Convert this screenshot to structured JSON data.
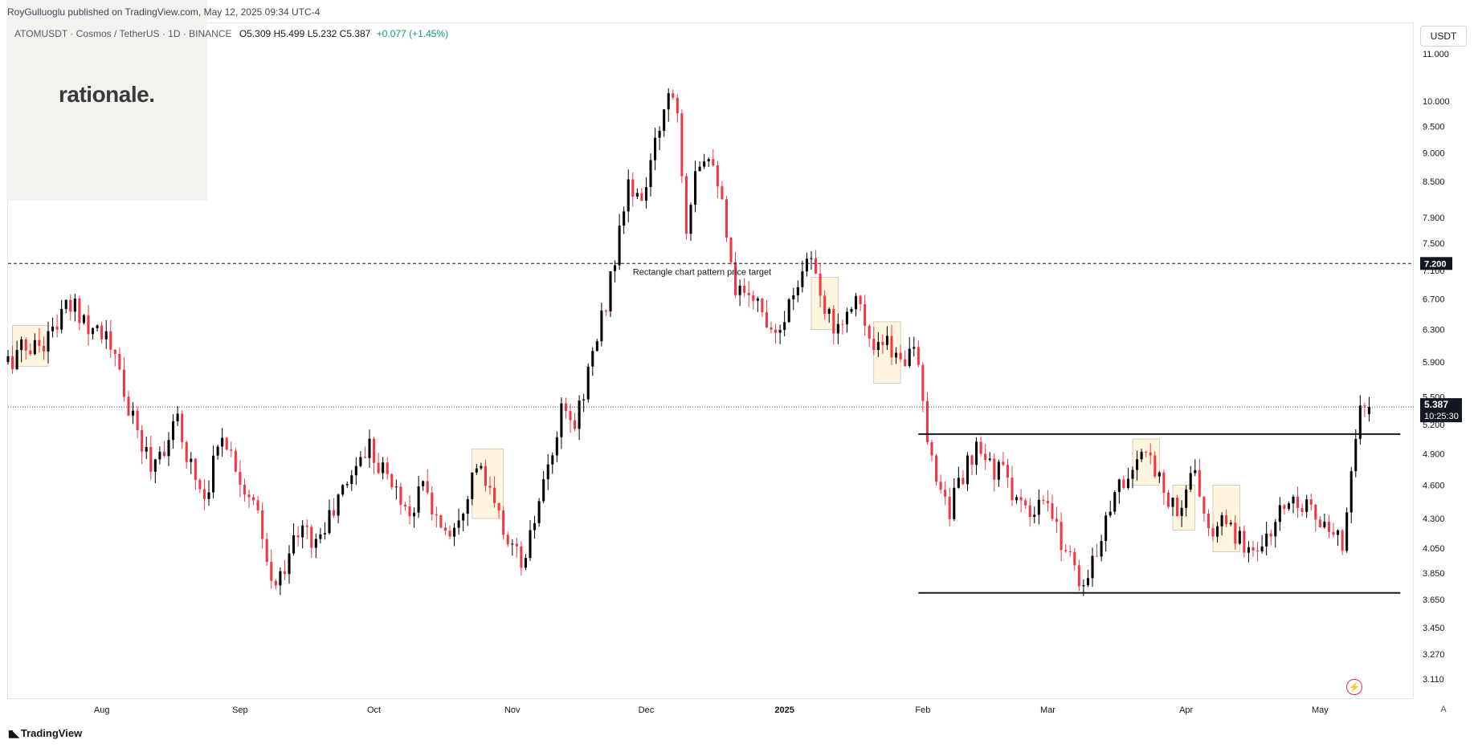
{
  "header": {
    "publisher": "RoyGulluoglu published on TradingView.com, May 12, 2025 09:34 UTC-4",
    "watermark": "rationale.",
    "unit_button": "USDT",
    "brand": "TradingView",
    "auto_button": "A"
  },
  "legend": {
    "symbol": "ATOMUSDT · Cosmos / TetherUS · 1D · BINANCE",
    "open": "O5.309",
    "high": "H5.499",
    "low": "L5.232",
    "close": "C5.387",
    "change": "+0.077 (+1.45%)"
  },
  "colors": {
    "up": "#000000",
    "down": "#f23645",
    "highlight": "#fdf5dd",
    "last_label_bg": "#131722",
    "change_text": "#089981",
    "bolt": "#d12c61"
  },
  "chart_data": {
    "type": "candlestick",
    "symbol": "ATOMUSDT",
    "interval": "1D",
    "scale": "log",
    "ylim": [
      3.0,
      11.7
    ],
    "y_ticks": [
      3.11,
      3.27,
      3.45,
      3.65,
      3.85,
      4.05,
      4.3,
      4.6,
      4.9,
      5.2,
      5.5,
      5.9,
      6.3,
      6.7,
      7.1,
      7.5,
      7.9,
      8.5,
      9.0,
      9.5,
      10.0,
      11.0
    ],
    "y_tick_labels": [
      "3.110",
      "3.270",
      "3.450",
      "3.650",
      "3.850",
      "4.050",
      "4.300",
      "4.600",
      "4.900",
      "5.200",
      "5.500",
      "5.900",
      "6.300",
      "6.700",
      "7.100",
      "7.500",
      "7.900",
      "8.500",
      "9.000",
      "9.500",
      "10.000",
      "11.000"
    ],
    "x_range": [
      "2024-07-11",
      "2025-05-22"
    ],
    "x_ticks": [
      {
        "date": "2024-08-01",
        "label": "Aug",
        "bold": false
      },
      {
        "date": "2024-09-01",
        "label": "Sep",
        "bold": false
      },
      {
        "date": "2024-10-01",
        "label": "Oct",
        "bold": false
      },
      {
        "date": "2024-11-01",
        "label": "Nov",
        "bold": false
      },
      {
        "date": "2024-12-01",
        "label": "Dec",
        "bold": false
      },
      {
        "date": "2025-01-01",
        "label": "2025",
        "bold": true
      },
      {
        "date": "2025-02-01",
        "label": "Feb",
        "bold": false
      },
      {
        "date": "2025-03-01",
        "label": "Mar",
        "bold": false
      },
      {
        "date": "2025-04-01",
        "label": "Apr",
        "bold": false
      },
      {
        "date": "2025-05-01",
        "label": "May",
        "bold": false
      }
    ],
    "close_path": [
      [
        "2024-07-11",
        5.9
      ],
      [
        "2024-07-14",
        6.05
      ],
      [
        "2024-07-17",
        6.1
      ],
      [
        "2024-07-20",
        6.2
      ],
      [
        "2024-07-23",
        6.5
      ],
      [
        "2024-07-26",
        6.6
      ],
      [
        "2024-07-29",
        6.4
      ],
      [
        "2024-08-01",
        6.3
      ],
      [
        "2024-08-03",
        6.05
      ],
      [
        "2024-08-05",
        5.75
      ],
      [
        "2024-08-07",
        5.35
      ],
      [
        "2024-08-09",
        5.1
      ],
      [
        "2024-08-12",
        4.8
      ],
      [
        "2024-08-15",
        5.0
      ],
      [
        "2024-08-18",
        5.2
      ],
      [
        "2024-08-21",
        4.8
      ],
      [
        "2024-08-24",
        4.5
      ],
      [
        "2024-08-26",
        4.8
      ],
      [
        "2024-08-28",
        5.15
      ],
      [
        "2024-08-30",
        4.9
      ],
      [
        "2024-09-02",
        4.6
      ],
      [
        "2024-09-05",
        4.3
      ],
      [
        "2024-09-07",
        3.9
      ],
      [
        "2024-09-09",
        3.72
      ],
      [
        "2024-09-12",
        4.05
      ],
      [
        "2024-09-15",
        4.2
      ],
      [
        "2024-09-18",
        4.1
      ],
      [
        "2024-09-21",
        4.3
      ],
      [
        "2024-09-24",
        4.55
      ],
      [
        "2024-09-27",
        4.8
      ],
      [
        "2024-09-30",
        5.0
      ],
      [
        "2024-10-03",
        4.75
      ],
      [
        "2024-10-06",
        4.55
      ],
      [
        "2024-10-09",
        4.35
      ],
      [
        "2024-10-12",
        4.6
      ],
      [
        "2024-10-15",
        4.3
      ],
      [
        "2024-10-18",
        4.2
      ],
      [
        "2024-10-21",
        4.45
      ],
      [
        "2024-10-24",
        4.8
      ],
      [
        "2024-10-27",
        4.5
      ],
      [
        "2024-10-30",
        4.2
      ],
      [
        "2024-11-02",
        4.0
      ],
      [
        "2024-11-04",
        3.93
      ],
      [
        "2024-11-06",
        4.3
      ],
      [
        "2024-11-09",
        4.7
      ],
      [
        "2024-11-12",
        5.3
      ],
      [
        "2024-11-15",
        5.2
      ],
      [
        "2024-11-18",
        5.8
      ],
      [
        "2024-11-21",
        6.4
      ],
      [
        "2024-11-23",
        7.0
      ],
      [
        "2024-11-25",
        7.6
      ],
      [
        "2024-11-27",
        8.5
      ],
      [
        "2024-11-29",
        8.1
      ],
      [
        "2024-12-02",
        8.7
      ],
      [
        "2024-12-04",
        9.5
      ],
      [
        "2024-12-06",
        10.3
      ],
      [
        "2024-12-08",
        9.9
      ],
      [
        "2024-12-10",
        7.8
      ],
      [
        "2024-12-12",
        8.8
      ],
      [
        "2024-12-15",
        9.1
      ],
      [
        "2024-12-17",
        8.6
      ],
      [
        "2024-12-19",
        7.5
      ],
      [
        "2024-12-21",
        6.7
      ],
      [
        "2024-12-24",
        6.9
      ],
      [
        "2024-12-27",
        6.5
      ],
      [
        "2024-12-30",
        6.35
      ],
      [
        "2025-01-02",
        6.6
      ],
      [
        "2025-01-05",
        7.2
      ],
      [
        "2025-01-07",
        7.3
      ],
      [
        "2025-01-09",
        6.6
      ],
      [
        "2025-01-12",
        6.4
      ],
      [
        "2025-01-15",
        6.5
      ],
      [
        "2025-01-17",
        6.9
      ],
      [
        "2025-01-19",
        6.3
      ],
      [
        "2025-01-21",
        6.0
      ],
      [
        "2025-01-24",
        6.1
      ],
      [
        "2025-01-27",
        5.9
      ],
      [
        "2025-01-30",
        6.2
      ],
      [
        "2025-01-31",
        5.75
      ],
      [
        "2025-02-02",
        4.95
      ],
      [
        "2025-02-04",
        4.7
      ],
      [
        "2025-02-07",
        4.4
      ],
      [
        "2025-02-10",
        4.7
      ],
      [
        "2025-02-13",
        4.9
      ],
      [
        "2025-02-16",
        4.8
      ],
      [
        "2025-02-19",
        4.7
      ],
      [
        "2025-02-22",
        4.5
      ],
      [
        "2025-02-25",
        4.25
      ],
      [
        "2025-02-28",
        4.45
      ],
      [
        "2025-03-03",
        4.2
      ],
      [
        "2025-03-06",
        4.0
      ],
      [
        "2025-03-09",
        3.75
      ],
      [
        "2025-03-11",
        3.9
      ],
      [
        "2025-03-14",
        4.35
      ],
      [
        "2025-03-17",
        4.6
      ],
      [
        "2025-03-20",
        4.75
      ],
      [
        "2025-03-23",
        4.85
      ],
      [
        "2025-03-26",
        4.75
      ],
      [
        "2025-03-28",
        4.45
      ],
      [
        "2025-03-31",
        4.35
      ],
      [
        "2025-04-02",
        4.8
      ],
      [
        "2025-04-04",
        4.5
      ],
      [
        "2025-04-07",
        4.1
      ],
      [
        "2025-04-10",
        4.3
      ],
      [
        "2025-04-13",
        4.1
      ],
      [
        "2025-04-16",
        4.05
      ],
      [
        "2025-04-19",
        4.1
      ],
      [
        "2025-04-22",
        4.35
      ],
      [
        "2025-04-25",
        4.5
      ],
      [
        "2025-04-28",
        4.45
      ],
      [
        "2025-05-01",
        4.25
      ],
      [
        "2025-05-04",
        4.1
      ],
      [
        "2025-05-06",
        4.1
      ],
      [
        "2025-05-08",
        4.8
      ],
      [
        "2025-05-10",
        5.35
      ],
      [
        "2025-05-12",
        5.387
      ]
    ],
    "last_bar": {
      "date": "2025-05-12",
      "open": 5.309,
      "high": 5.499,
      "low": 5.232,
      "close": 5.387
    },
    "last_price_label": "5.387",
    "countdown_label": "10:25:30",
    "horizontal_lines": [
      {
        "name": "target",
        "price": 7.2,
        "style": "dashed",
        "label": "7.200",
        "annotation": "Rectangle chart pattern price target"
      },
      {
        "name": "resistance",
        "price": 5.1,
        "style": "solid",
        "from": "2025-01-31",
        "to": "2025-05-19"
      },
      {
        "name": "support",
        "price": 3.7,
        "style": "solid",
        "from": "2025-01-31",
        "to": "2025-05-19"
      }
    ],
    "highlight_boxes": [
      {
        "from": "2024-07-12",
        "to": "2024-07-20",
        "low": 5.85,
        "high": 6.35
      },
      {
        "from": "2024-10-23",
        "to": "2024-10-30",
        "low": 4.3,
        "high": 4.95
      },
      {
        "from": "2025-01-07",
        "to": "2025-01-13",
        "low": 6.3,
        "high": 7.0
      },
      {
        "from": "2025-01-21",
        "to": "2025-01-27",
        "low": 5.65,
        "high": 6.4
      },
      {
        "from": "2025-03-20",
        "to": "2025-03-26",
        "low": 4.6,
        "high": 5.05
      },
      {
        "from": "2025-03-29",
        "to": "2025-04-03",
        "low": 4.2,
        "high": 4.6
      },
      {
        "from": "2025-04-07",
        "to": "2025-04-13",
        "low": 4.02,
        "high": 4.6
      }
    ],
    "grid": false,
    "legend_position": "top-left"
  }
}
